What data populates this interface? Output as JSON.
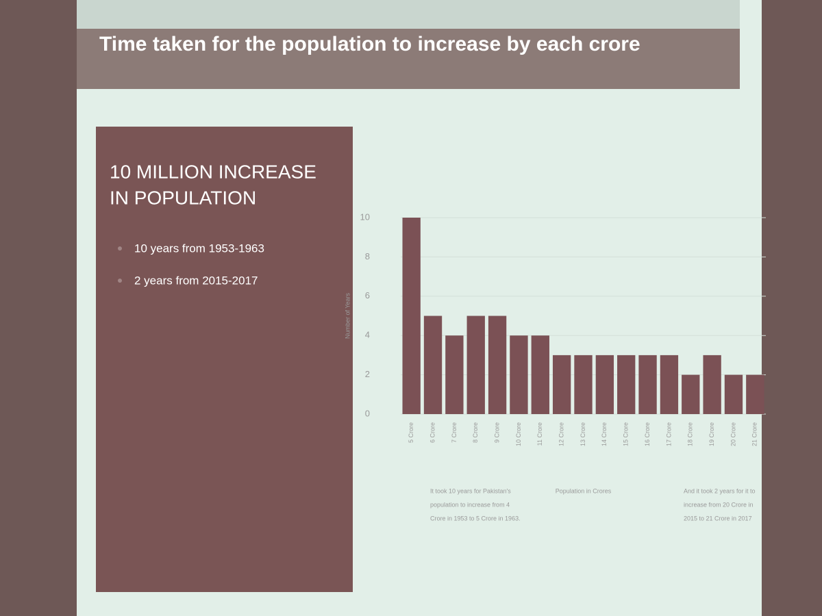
{
  "slide": {
    "title": "Time taken for the population to increase by each crore",
    "panel_heading": [
      "10 MILLION INCREASE",
      "IN POPULATION"
    ],
    "bullets": [
      "10 years from 1953-1963",
      "2 years from 2015-2017"
    ]
  },
  "chart_data": {
    "type": "bar",
    "categories": [
      "5 Crore",
      "6 Crore",
      "7 Crore",
      "8 Crore",
      "9 Crore",
      "10 Crore",
      "11 Crore",
      "12 Crore",
      "13 Crore",
      "14 Crore",
      "15 Crore",
      "16 Crore",
      "17 Crore",
      "18 Crore",
      "19 Crore",
      "20 Crore",
      "21 Crore"
    ],
    "values": [
      10,
      5,
      4,
      5,
      5,
      4,
      4,
      3,
      3,
      3,
      3,
      3,
      3,
      2,
      3,
      2,
      2
    ],
    "color": "#7b5155",
    "ylim": [
      0,
      10
    ],
    "yticks": [
      0,
      2,
      4,
      6,
      8,
      10
    ],
    "grid": true,
    "y_label": "Number of Years",
    "x_label": "Population in Crores",
    "annotations": [
      "It took 10 years for Pakistan's",
      "population to increase from 4",
      "Crore in 1953 to 5 Crore in 1963.",
      "And it took 2 years for it to",
      "increase from 20 Crore in",
      "2015 to 21 Crore in 2017"
    ]
  }
}
